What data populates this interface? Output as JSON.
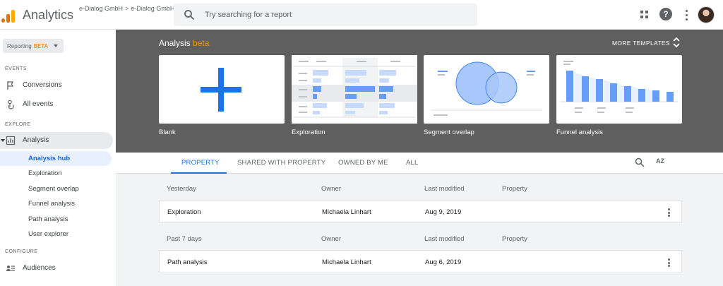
{
  "header": {
    "app_title": "Analytics",
    "breadcrumb": {
      "account": "e-Dialog GmbH",
      "separator": ">",
      "property": "e-Dialog GmbH"
    },
    "search_placeholder": "Try searching for a report"
  },
  "sidebar": {
    "reporting_chip": {
      "label": "Reporting",
      "badge": "BETA"
    },
    "sections": {
      "events": "EVENTS",
      "explore": "EXPLORE",
      "configure": "CONFIGURE"
    },
    "events_items": [
      {
        "label": "Conversions",
        "icon": "flag-icon"
      },
      {
        "label": "All events",
        "icon": "touch-icon"
      }
    ],
    "explore_parent": {
      "label": "Analysis",
      "icon": "analysis-icon"
    },
    "explore_items": [
      {
        "label": "Analysis hub",
        "active": true
      },
      {
        "label": "Exploration"
      },
      {
        "label": "Segment overlap"
      },
      {
        "label": "Funnel analysis"
      },
      {
        "label": "Path analysis"
      },
      {
        "label": "User explorer"
      }
    ],
    "configure_items": [
      {
        "label": "Audiences",
        "icon": "audience-icon"
      }
    ]
  },
  "hero": {
    "title": "Analysis",
    "title_badge": "beta",
    "more_templates": "MORE TEMPLATES",
    "templates": [
      {
        "label": "Blank",
        "icon": "plus-icon"
      },
      {
        "label": "Exploration",
        "icon": "exploration-thumbnail"
      },
      {
        "label": "Segment overlap",
        "icon": "venn-thumbnail"
      },
      {
        "label": "Funnel analysis",
        "icon": "funnel-thumbnail"
      }
    ]
  },
  "tabs": [
    {
      "label": "PROPERTY",
      "active": true
    },
    {
      "label": "SHARED WITH PROPERTY"
    },
    {
      "label": "OWNED BY ME"
    },
    {
      "label": "ALL"
    }
  ],
  "tab_tools": {
    "sort_label": "AZ"
  },
  "table": {
    "columns": [
      "Owner",
      "Last modified",
      "Property"
    ],
    "groups": [
      {
        "title": "Yesterday",
        "rows": [
          {
            "name": "Exploration",
            "owner": "Michaela Linhart",
            "modified": "Aug 9, 2019",
            "property": ""
          }
        ]
      },
      {
        "title": "Past 7 days",
        "rows": [
          {
            "name": "Path analysis",
            "owner": "Michaela Linhart",
            "modified": "Aug 6, 2019",
            "property": ""
          }
        ]
      }
    ]
  },
  "colors": {
    "accent": "#1a73e8",
    "beta": "#f29900",
    "hero_bg": "#5f5f5f",
    "thumb_blue": "#4285f4"
  }
}
